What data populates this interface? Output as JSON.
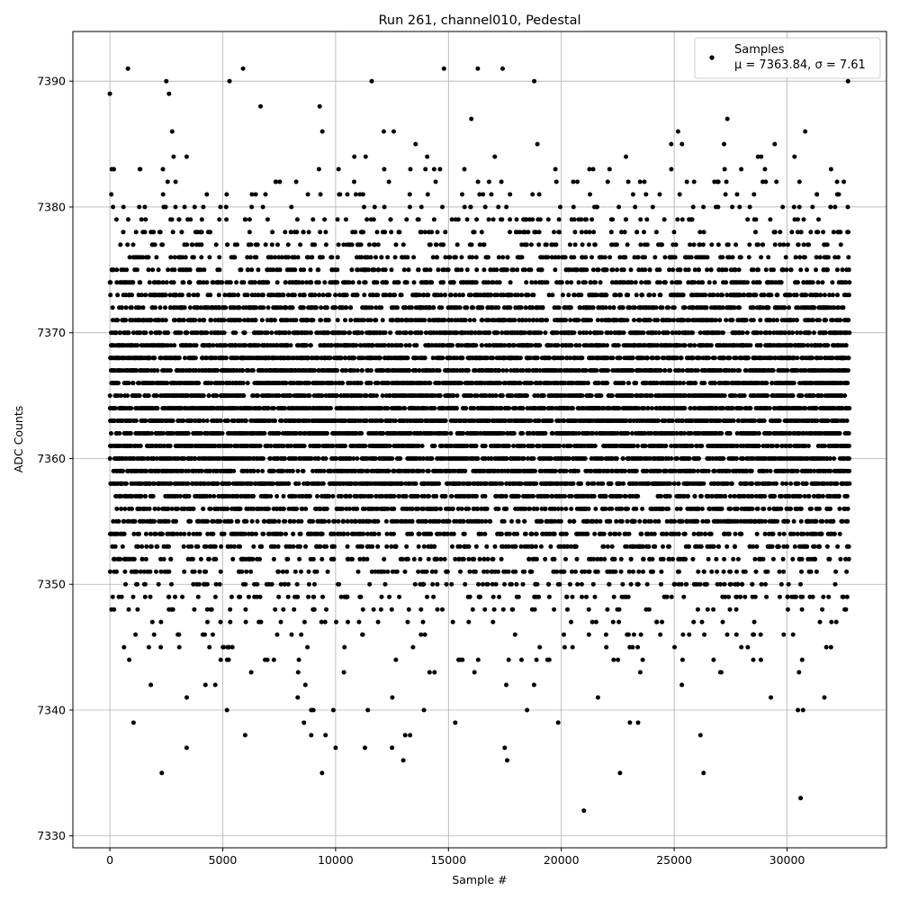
{
  "chart_data": {
    "type": "scatter",
    "title": "Run 261, channel010, Pedestal",
    "xlabel": "Sample #",
    "ylabel": "ADC Counts",
    "xlim": [
      -1638,
      34405
    ],
    "ylim": [
      7329.05,
      7393.95
    ],
    "xticks": [
      0,
      5000,
      10000,
      15000,
      20000,
      25000,
      30000
    ],
    "yticks": [
      7330,
      7340,
      7350,
      7360,
      7370,
      7380,
      7390
    ],
    "grid": true,
    "legend_placement": "upper right",
    "series": [
      {
        "name": "Samples",
        "label_stats": "μ = 7363.84, σ = 7.61",
        "color": "#000000",
        "marker": "dot",
        "mean": 7363.84,
        "sigma": 7.61,
        "x_range": [
          0,
          32767
        ],
        "value_range": [
          7332,
          7391
        ],
        "quantization": 1,
        "notable_points": [
          [
            2300,
            7335
          ],
          [
            3400,
            7337
          ],
          [
            9400,
            7335
          ],
          [
            9900,
            7340
          ],
          [
            10000,
            7337
          ],
          [
            11300,
            7337
          ],
          [
            12500,
            7337
          ],
          [
            13000,
            7336
          ],
          [
            13300,
            7338
          ],
          [
            17600,
            7336
          ],
          [
            21000,
            7332
          ],
          [
            22600,
            7335
          ],
          [
            26300,
            7335
          ],
          [
            30600,
            7333
          ],
          [
            1050,
            7339
          ],
          [
            8600,
            7339
          ],
          [
            15300,
            7339
          ],
          [
            23400,
            7339
          ],
          [
            800,
            7391
          ],
          [
            5900,
            7391
          ],
          [
            14800,
            7391
          ],
          [
            16300,
            7391
          ],
          [
            17400,
            7391
          ],
          [
            32700,
            7390
          ],
          [
            0,
            7389
          ],
          [
            2500,
            7390
          ],
          [
            5300,
            7390
          ],
          [
            11600,
            7390
          ],
          [
            18800,
            7390
          ]
        ]
      }
    ]
  }
}
